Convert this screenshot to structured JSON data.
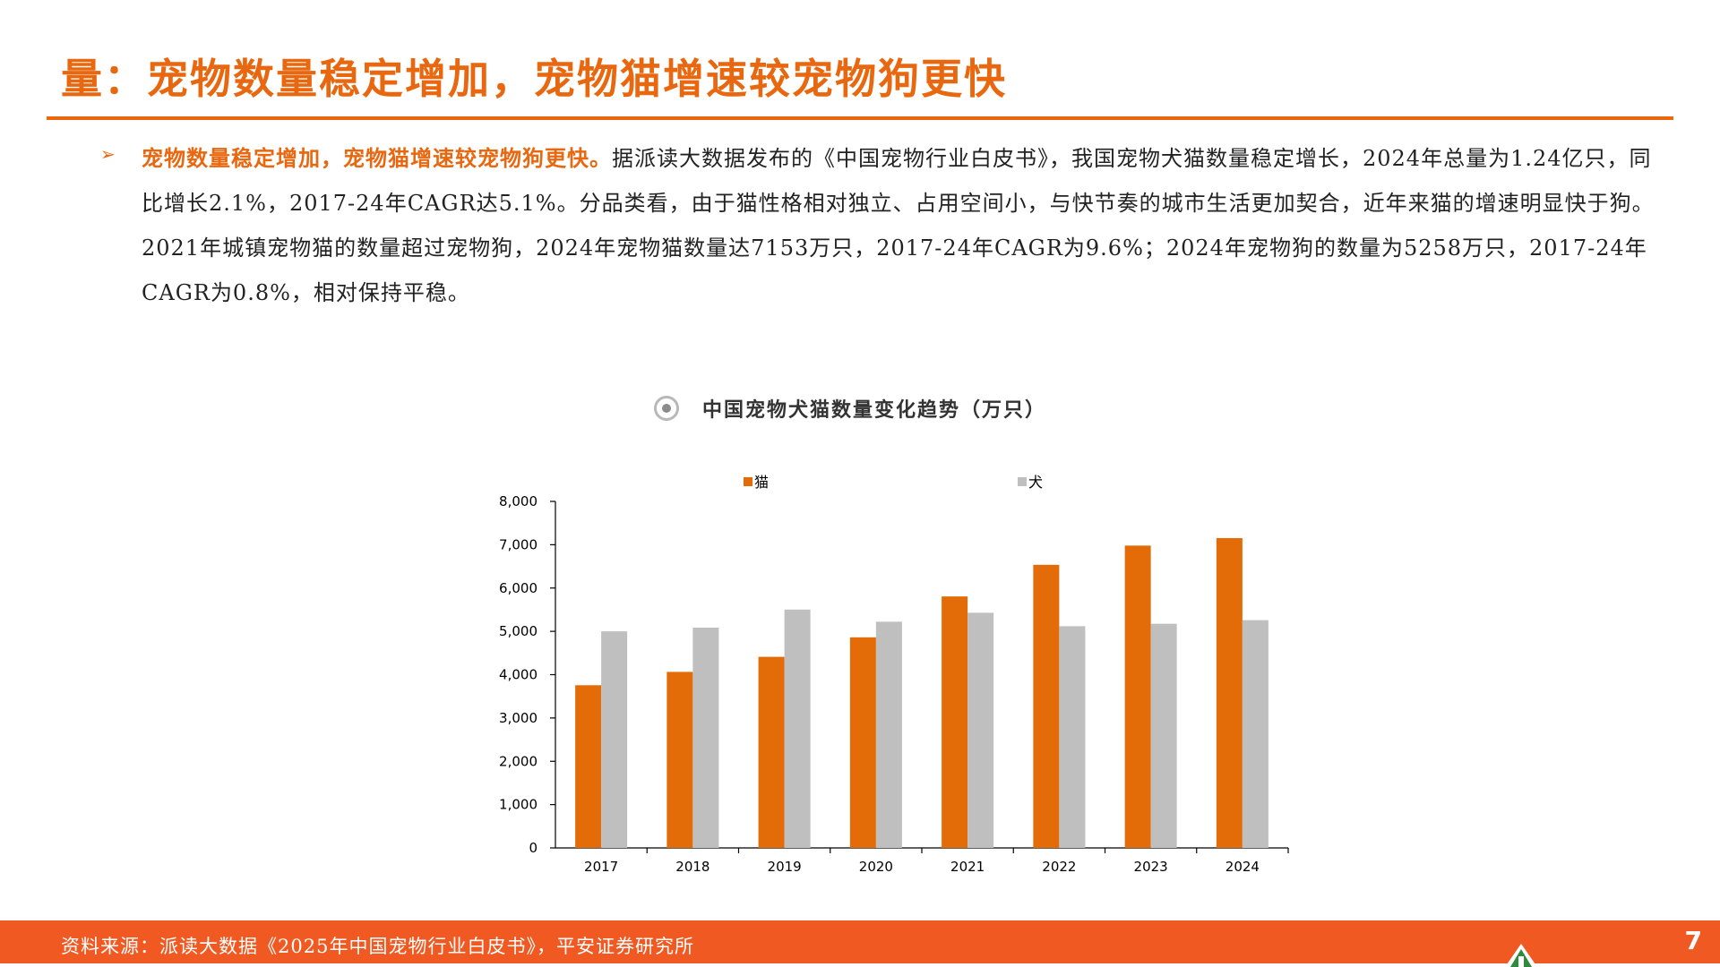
{
  "page": {
    "title": "量：宠物数量稳定增加，宠物猫增速较宠物狗更快",
    "bullet_highlight": "宠物数量稳定增加，宠物猫增速较宠物狗更快。",
    "bullet_body": "据派读大数据发布的《中国宠物行业白皮书》，我国宠物犬猫数量稳定增长，2024年总量为1.24亿只，同比增长2.1%，2017-24年CAGR达5.1%。分品类看，由于猫性格相对独立、占用空间小，与快节奏的城市生活更加契合，近年来猫的增速明显快于狗。2021年城镇宠物猫的数量超过宠物狗，2024年宠物猫数量达7153万只，2017-24年CAGR为9.6%；2024年宠物狗的数量为5258万只，2017-24年CAGR为0.8%，相对保持平稳。",
    "source": "资料来源：派读大数据《2025年中国宠物行业白皮书》，平安证券研究所",
    "page_number": "7"
  },
  "colors": {
    "accent": "#E8670F",
    "cat": "#E36C09",
    "dog": "#BFBFBF",
    "footer": "#F05A22"
  },
  "chart_data": {
    "type": "bar",
    "title": "中国宠物犬猫数量变化趋势（万只）",
    "categories": [
      "2017",
      "2018",
      "2019",
      "2020",
      "2021",
      "2022",
      "2023",
      "2024"
    ],
    "series": [
      {
        "name": "猫",
        "values": [
          3756,
          4064,
          4412,
          4862,
          5806,
          6536,
          6980,
          7153
        ]
      },
      {
        "name": "犬",
        "values": [
          5000,
          5085,
          5503,
          5222,
          5429,
          5119,
          5175,
          5258
        ]
      }
    ],
    "ylim": [
      0,
      8000
    ],
    "yticks": [
      "0",
      "1,000",
      "2,000",
      "3,000",
      "4,000",
      "5,000",
      "6,000",
      "7,000",
      "8,000"
    ],
    "grid": false,
    "legend": "top"
  }
}
